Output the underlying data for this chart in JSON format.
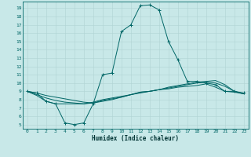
{
  "xlabel": "Humidex (Indice chaleur)",
  "xlim": [
    -0.5,
    23.5
  ],
  "ylim": [
    4.5,
    19.8
  ],
  "xticks": [
    0,
    1,
    2,
    3,
    4,
    5,
    6,
    7,
    8,
    9,
    10,
    11,
    12,
    13,
    14,
    15,
    16,
    17,
    18,
    19,
    20,
    21,
    22,
    23
  ],
  "yticks": [
    5,
    6,
    7,
    8,
    9,
    10,
    11,
    12,
    13,
    14,
    15,
    16,
    17,
    18,
    19
  ],
  "bg_color": "#c8e8e8",
  "line_color": "#006666",
  "grid_color": "#b0d4d4",
  "main_line_x": [
    0,
    1,
    2,
    3,
    4,
    5,
    6,
    7,
    8,
    9,
    10,
    11,
    12,
    13,
    14,
    15,
    16,
    17,
    18,
    19,
    20,
    21,
    22,
    23
  ],
  "main_line_y": [
    9.0,
    8.8,
    7.8,
    7.5,
    5.2,
    5.0,
    5.2,
    7.5,
    11.0,
    11.2,
    16.2,
    17.0,
    19.3,
    19.4,
    18.8,
    15.0,
    12.8,
    10.2,
    10.2,
    10.0,
    9.8,
    9.0,
    9.0,
    8.8
  ],
  "flat_lines": [
    [
      9.0,
      8.5,
      7.8,
      7.5,
      7.5,
      7.5,
      7.5,
      7.7,
      8.0,
      8.2,
      8.4,
      8.6,
      8.8,
      9.0,
      9.2,
      9.3,
      9.5,
      9.6,
      9.7,
      9.9,
      9.5,
      9.0,
      8.9,
      8.7
    ],
    [
      9.0,
      8.6,
      8.2,
      7.9,
      7.7,
      7.6,
      7.5,
      7.6,
      7.9,
      8.1,
      8.3,
      8.6,
      8.9,
      9.0,
      9.2,
      9.4,
      9.6,
      9.8,
      10.0,
      10.1,
      10.0,
      9.6,
      9.0,
      8.7
    ],
    [
      9.0,
      8.8,
      8.5,
      8.3,
      8.1,
      7.9,
      7.7,
      7.6,
      7.8,
      8.0,
      8.3,
      8.6,
      8.9,
      9.0,
      9.2,
      9.5,
      9.7,
      9.9,
      10.1,
      10.2,
      10.3,
      9.8,
      9.0,
      8.7
    ]
  ],
  "xlabel_fontsize": 5.5,
  "tick_fontsize": 4.5,
  "xlabel_color": "#003333",
  "xlabel_bold": true
}
